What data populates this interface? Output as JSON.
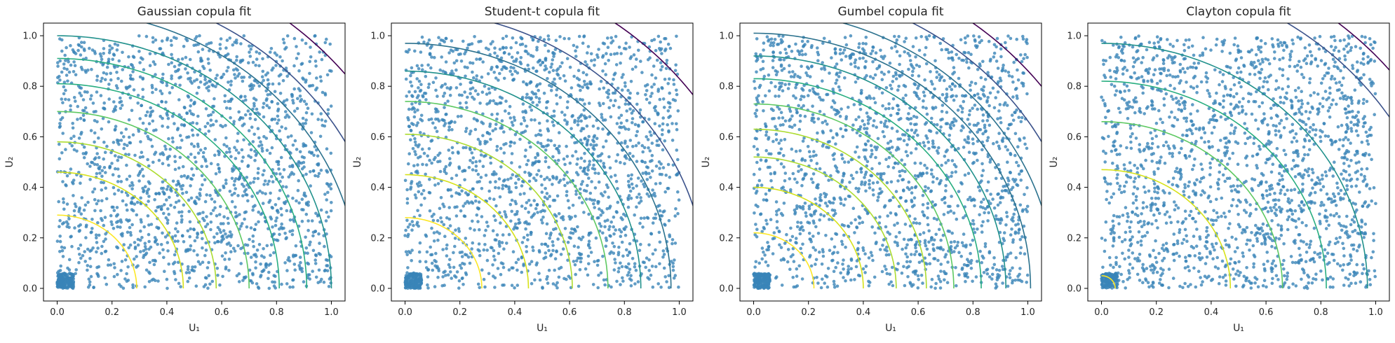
{
  "figure": {
    "panel_count": 4,
    "marker_color": "#3a84b8"
  },
  "chart_data": [
    {
      "type": "scatter",
      "title": "Gaussian copula fit",
      "xlabel": "U₁",
      "ylabel": "U₂",
      "xlim": [
        -0.05,
        1.05
      ],
      "ylim": [
        -0.05,
        1.05
      ],
      "xticks": [
        "0.0",
        "0.2",
        "0.4",
        "0.6",
        "0.8",
        "1.0"
      ],
      "yticks": [
        "0.0",
        "0.2",
        "0.4",
        "0.6",
        "0.8",
        "1.0"
      ],
      "grid": false,
      "legend": "none",
      "scatter_points": 2000,
      "point_color": "#3a84b8",
      "overlay": "density contours",
      "contour_colormap": "viridis",
      "contour_radii": [
        0.29,
        0.46,
        0.58,
        0.7,
        0.81,
        0.91,
        1.0,
        1.1,
        1.2,
        1.35
      ]
    },
    {
      "type": "scatter",
      "title": "Student-t copula fit",
      "xlabel": "U₁",
      "ylabel": "U₂",
      "xlim": [
        -0.05,
        1.05
      ],
      "ylim": [
        -0.05,
        1.05
      ],
      "xticks": [
        "0.0",
        "0.2",
        "0.4",
        "0.6",
        "0.8",
        "1.0"
      ],
      "yticks": [
        "0.0",
        "0.2",
        "0.4",
        "0.6",
        "0.8",
        "1.0"
      ],
      "grid": false,
      "legend": "none",
      "scatter_points": 2000,
      "point_color": "#3a84b8",
      "overlay": "density contours",
      "contour_colormap": "viridis",
      "contour_radii": [
        0.28,
        0.45,
        0.61,
        0.74,
        0.86,
        0.97,
        1.1,
        1.3
      ]
    },
    {
      "type": "scatter",
      "title": "Gumbel copula fit",
      "xlabel": "U₁",
      "ylabel": "U₂",
      "xlim": [
        -0.05,
        1.05
      ],
      "ylim": [
        -0.05,
        1.05
      ],
      "xticks": [
        "0.0",
        "0.2",
        "0.4",
        "0.6",
        "0.8",
        "1.0"
      ],
      "yticks": [
        "0.0",
        "0.2",
        "0.4",
        "0.6",
        "0.8",
        "1.0"
      ],
      "grid": false,
      "legend": "none",
      "scatter_points": 2000,
      "point_color": "#3a84b8",
      "overlay": "density contours",
      "contour_colormap": "viridis",
      "contour_radii": [
        0.22,
        0.4,
        0.52,
        0.63,
        0.73,
        0.83,
        0.92,
        1.01,
        1.1,
        1.2,
        1.32
      ]
    },
    {
      "type": "scatter",
      "title": "Clayton copula fit",
      "xlabel": "U₁",
      "ylabel": "U₂",
      "xlim": [
        -0.05,
        1.05
      ],
      "ylim": [
        -0.05,
        1.05
      ],
      "xticks": [
        "0.0",
        "0.2",
        "0.4",
        "0.6",
        "0.8",
        "1.0"
      ],
      "yticks": [
        "0.0",
        "0.2",
        "0.4",
        "0.6",
        "0.8",
        "1.0"
      ],
      "grid": false,
      "legend": "none",
      "scatter_points": 2000,
      "point_color": "#3a84b8",
      "overlay": "density contours",
      "contour_colormap": "viridis",
      "contour_radii": [
        0.05,
        0.47,
        0.66,
        0.82,
        0.97,
        1.25,
        1.36
      ]
    }
  ]
}
